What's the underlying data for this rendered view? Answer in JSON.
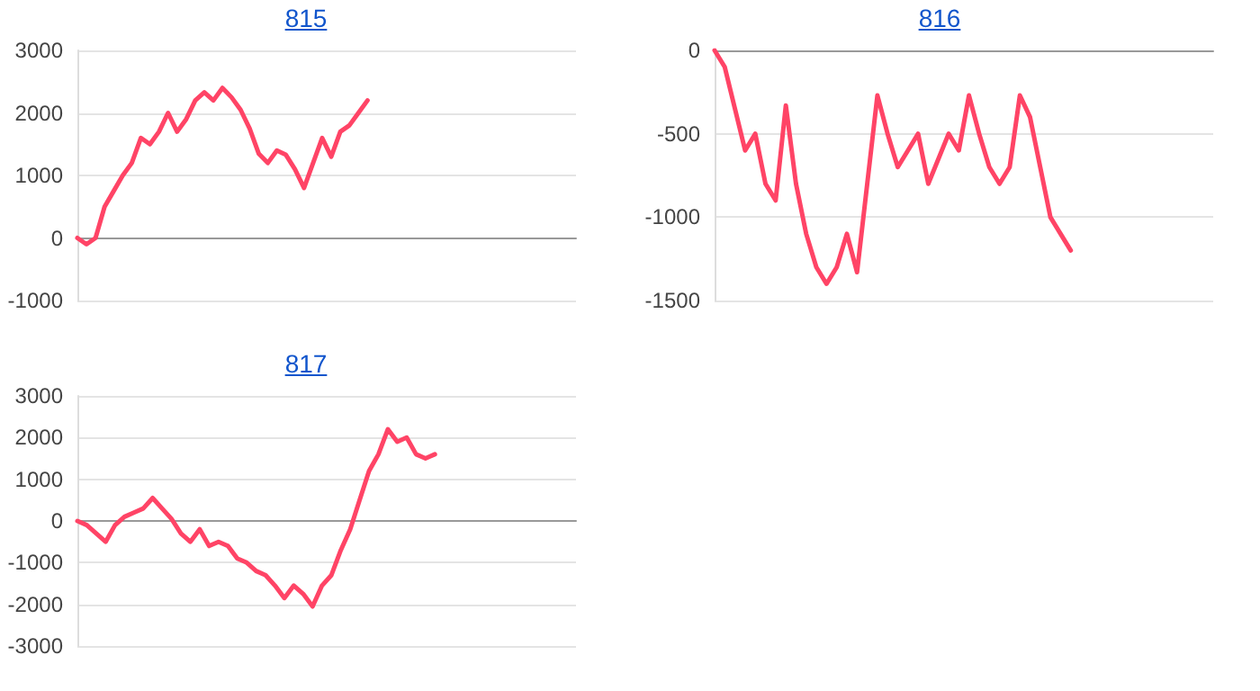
{
  "chart_data": [
    {
      "type": "line",
      "title": "815",
      "tick_labels": "y",
      "grid": "y",
      "line_style": "solid",
      "categories": [
        null,
        null,
        null,
        null,
        null,
        null,
        null,
        null,
        null,
        null,
        null,
        null,
        null,
        null,
        null,
        null,
        null,
        null,
        null,
        null,
        null,
        null,
        null,
        null,
        null,
        null,
        null,
        null,
        null,
        null,
        null,
        null,
        null,
        null,
        null,
        null,
        null,
        null,
        null,
        null,
        null,
        null,
        null,
        null,
        null,
        null,
        null,
        null,
        null,
        null,
        null,
        null,
        null,
        null,
        null,
        null
      ],
      "series": [
        {
          "color": "#ff4466",
          "values": [
            0,
            -100,
            0,
            500,
            750,
            1000,
            1200,
            1600,
            1500,
            1700,
            2000,
            1700,
            1900,
            2200,
            2330,
            2200,
            2400,
            2250,
            2050,
            1750,
            1350,
            1200,
            1400,
            1330,
            1100,
            800,
            1200,
            1600,
            1300,
            1700,
            1800,
            2000,
            2200,
            null,
            null,
            null,
            null,
            null,
            null,
            null,
            null,
            null,
            null,
            null,
            null,
            null,
            null,
            null,
            null,
            null,
            null,
            null,
            null,
            null,
            null,
            null
          ]
        }
      ],
      "ylim": [
        -1000,
        3000
      ],
      "yticks": [
        -1000,
        0,
        1000,
        2000,
        3000
      ]
    },
    {
      "type": "line",
      "title": "816",
      "tick_labels": "y",
      "grid": "y",
      "line_style": "solid",
      "categories": [
        null,
        null,
        null,
        null,
        null,
        null,
        null,
        null,
        null,
        null,
        null,
        null,
        null,
        null,
        null,
        null,
        null,
        null,
        null,
        null,
        null,
        null,
        null,
        null,
        null,
        null,
        null,
        null,
        null,
        null,
        null,
        null,
        null,
        null,
        null,
        null,
        null,
        null,
        null,
        null,
        null,
        null,
        null,
        null,
        null,
        null,
        null,
        null,
        null,
        null
      ],
      "series": [
        {
          "color": "#ff4466",
          "values": [
            0,
            -100,
            -350,
            -600,
            -500,
            -800,
            -900,
            -330,
            -800,
            -1100,
            -1300,
            -1400,
            -1300,
            -1100,
            -1330,
            -800,
            -270,
            -500,
            -700,
            -600,
            -500,
            -800,
            -650,
            -500,
            -600,
            -270,
            -500,
            -700,
            -800,
            -700,
            -270,
            -400,
            -700,
            -1000,
            -1100,
            -1200,
            null,
            null,
            null,
            null,
            null,
            null,
            null,
            null,
            null,
            null,
            null,
            null,
            null,
            null
          ]
        }
      ],
      "ylim": [
        -1500,
        0
      ],
      "yticks": [
        -1500,
        -1000,
        -500,
        0
      ]
    },
    {
      "type": "line",
      "title": "817",
      "tick_labels": "y",
      "grid": "y",
      "line_style": "solid",
      "categories": [
        null,
        null,
        null,
        null,
        null,
        null,
        null,
        null,
        null,
        null,
        null,
        null,
        null,
        null,
        null,
        null,
        null,
        null,
        null,
        null,
        null,
        null,
        null,
        null,
        null,
        null,
        null,
        null,
        null,
        null,
        null,
        null,
        null,
        null,
        null,
        null,
        null,
        null,
        null,
        null,
        null,
        null,
        null,
        null,
        null,
        null,
        null,
        null,
        null,
        null,
        null,
        null,
        null,
        null
      ],
      "series": [
        {
          "color": "#ff4466",
          "values": [
            0,
            -100,
            -300,
            -500,
            -100,
            100,
            200,
            300,
            550,
            300,
            50,
            -300,
            -500,
            -200,
            -600,
            -500,
            -600,
            -900,
            -1000,
            -1200,
            -1300,
            -1550,
            -1850,
            -1550,
            -1750,
            -2050,
            -1550,
            -1300,
            -700,
            -200,
            500,
            1200,
            1600,
            2200,
            1900,
            2000,
            1600,
            1500,
            1600,
            null,
            null,
            null,
            null,
            null,
            null,
            null,
            null,
            null,
            null,
            null,
            null,
            null,
            null,
            null
          ]
        }
      ],
      "ylim": [
        -3000,
        3000
      ],
      "yticks": [
        -3000,
        -2000,
        -1000,
        0,
        1000,
        2000,
        3000
      ]
    }
  ]
}
